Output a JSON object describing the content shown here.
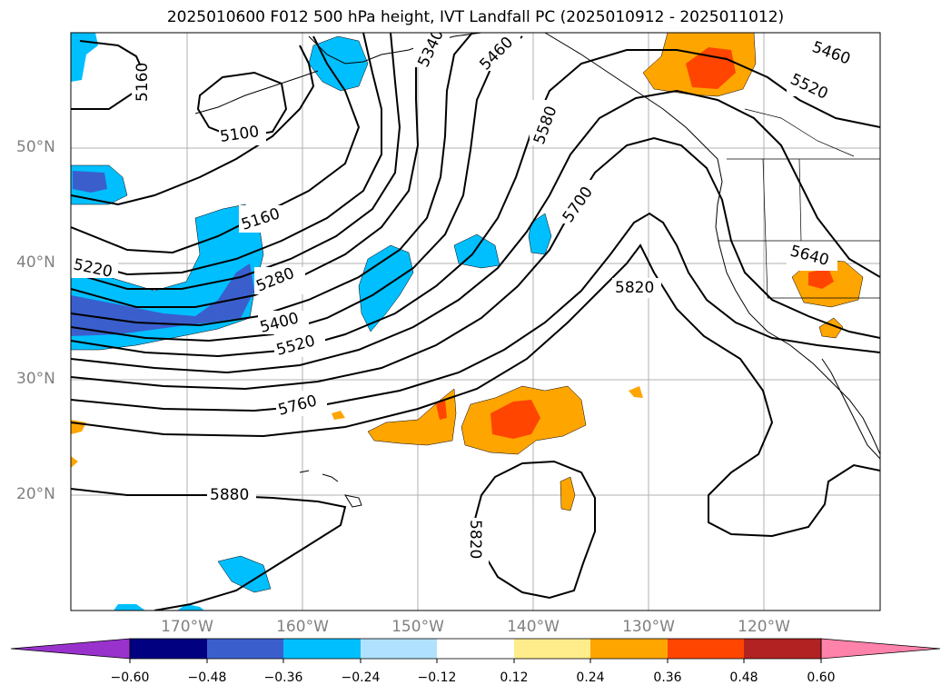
{
  "title": "2025010600 F012 500 hPa height, IVT Landfall PC (2025010912 - 2025011012)",
  "lat_labels": [
    "50°N",
    "40°N",
    "30°N",
    "20°N"
  ],
  "lon_labels": [
    "170°W",
    "160°W",
    "150°W",
    "140°W",
    "130°W",
    "120°W"
  ],
  "contour_labels": [
    "5160",
    "5100",
    "5340",
    "5460",
    "5460",
    "5520",
    "5580",
    "5700",
    "5160",
    "5220",
    "5280",
    "5400",
    "5520",
    "5640",
    "5820",
    "5760",
    "5880",
    "5820"
  ],
  "colorbar": {
    "ticks": [
      "−0.60",
      "−0.48",
      "−0.36",
      "−0.24",
      "−0.12",
      "0.12",
      "0.24",
      "0.36",
      "0.48",
      "0.60"
    ],
    "colors": [
      "#9932cc",
      "#000080",
      "#3a5fcd",
      "#00bfff",
      "#b0e2ff",
      "#ffffff",
      "#ffec8b",
      "#ffa500",
      "#ff4500",
      "#b22222",
      "#ff82ab"
    ]
  }
}
